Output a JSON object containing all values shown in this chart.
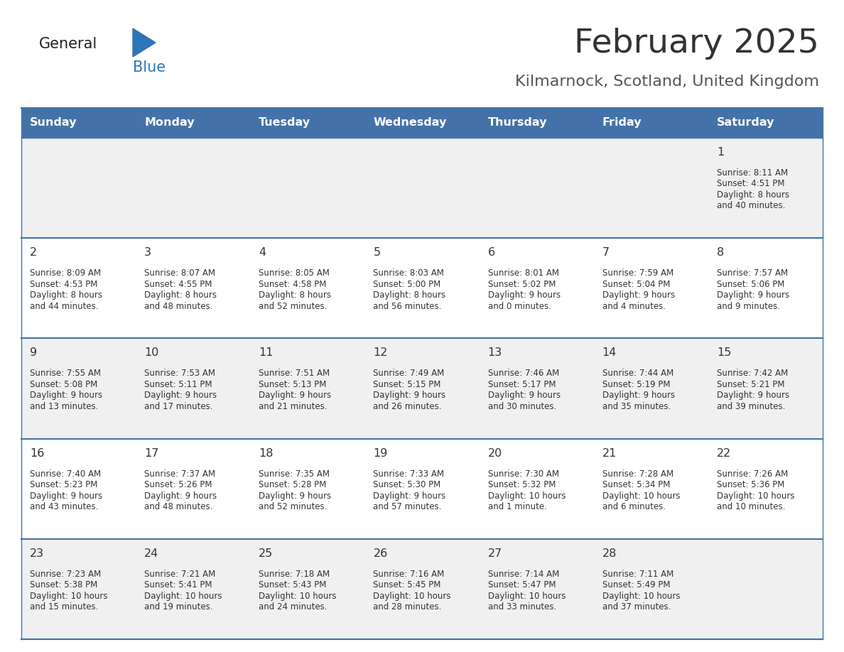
{
  "title": "February 2025",
  "subtitle": "Kilmarnock, Scotland, United Kingdom",
  "days_of_week": [
    "Sunday",
    "Monday",
    "Tuesday",
    "Wednesday",
    "Thursday",
    "Friday",
    "Saturday"
  ],
  "header_bg": "#4472a8",
  "header_text": "#ffffff",
  "row_bg_odd": "#f0f0f0",
  "row_bg_even": "#ffffff",
  "row_divider": "#4472a8",
  "cell_text": "#333333",
  "title_color": "#333333",
  "subtitle_color": "#555555",
  "logo_general_color": "#222222",
  "logo_blue_color": "#2e75b6",
  "fig_width": 11.88,
  "fig_height": 9.18,
  "calendar_data": [
    {
      "day": 1,
      "col": 6,
      "row": 0,
      "sunrise": "8:11 AM",
      "sunset": "4:51 PM",
      "daylight_line1": "Daylight: 8 hours",
      "daylight_line2": "and 40 minutes."
    },
    {
      "day": 2,
      "col": 0,
      "row": 1,
      "sunrise": "8:09 AM",
      "sunset": "4:53 PM",
      "daylight_line1": "Daylight: 8 hours",
      "daylight_line2": "and 44 minutes."
    },
    {
      "day": 3,
      "col": 1,
      "row": 1,
      "sunrise": "8:07 AM",
      "sunset": "4:55 PM",
      "daylight_line1": "Daylight: 8 hours",
      "daylight_line2": "and 48 minutes."
    },
    {
      "day": 4,
      "col": 2,
      "row": 1,
      "sunrise": "8:05 AM",
      "sunset": "4:58 PM",
      "daylight_line1": "Daylight: 8 hours",
      "daylight_line2": "and 52 minutes."
    },
    {
      "day": 5,
      "col": 3,
      "row": 1,
      "sunrise": "8:03 AM",
      "sunset": "5:00 PM",
      "daylight_line1": "Daylight: 8 hours",
      "daylight_line2": "and 56 minutes."
    },
    {
      "day": 6,
      "col": 4,
      "row": 1,
      "sunrise": "8:01 AM",
      "sunset": "5:02 PM",
      "daylight_line1": "Daylight: 9 hours",
      "daylight_line2": "and 0 minutes."
    },
    {
      "day": 7,
      "col": 5,
      "row": 1,
      "sunrise": "7:59 AM",
      "sunset": "5:04 PM",
      "daylight_line1": "Daylight: 9 hours",
      "daylight_line2": "and 4 minutes."
    },
    {
      "day": 8,
      "col": 6,
      "row": 1,
      "sunrise": "7:57 AM",
      "sunset": "5:06 PM",
      "daylight_line1": "Daylight: 9 hours",
      "daylight_line2": "and 9 minutes."
    },
    {
      "day": 9,
      "col": 0,
      "row": 2,
      "sunrise": "7:55 AM",
      "sunset": "5:08 PM",
      "daylight_line1": "Daylight: 9 hours",
      "daylight_line2": "and 13 minutes."
    },
    {
      "day": 10,
      "col": 1,
      "row": 2,
      "sunrise": "7:53 AM",
      "sunset": "5:11 PM",
      "daylight_line1": "Daylight: 9 hours",
      "daylight_line2": "and 17 minutes."
    },
    {
      "day": 11,
      "col": 2,
      "row": 2,
      "sunrise": "7:51 AM",
      "sunset": "5:13 PM",
      "daylight_line1": "Daylight: 9 hours",
      "daylight_line2": "and 21 minutes."
    },
    {
      "day": 12,
      "col": 3,
      "row": 2,
      "sunrise": "7:49 AM",
      "sunset": "5:15 PM",
      "daylight_line1": "Daylight: 9 hours",
      "daylight_line2": "and 26 minutes."
    },
    {
      "day": 13,
      "col": 4,
      "row": 2,
      "sunrise": "7:46 AM",
      "sunset": "5:17 PM",
      "daylight_line1": "Daylight: 9 hours",
      "daylight_line2": "and 30 minutes."
    },
    {
      "day": 14,
      "col": 5,
      "row": 2,
      "sunrise": "7:44 AM",
      "sunset": "5:19 PM",
      "daylight_line1": "Daylight: 9 hours",
      "daylight_line2": "and 35 minutes."
    },
    {
      "day": 15,
      "col": 6,
      "row": 2,
      "sunrise": "7:42 AM",
      "sunset": "5:21 PM",
      "daylight_line1": "Daylight: 9 hours",
      "daylight_line2": "and 39 minutes."
    },
    {
      "day": 16,
      "col": 0,
      "row": 3,
      "sunrise": "7:40 AM",
      "sunset": "5:23 PM",
      "daylight_line1": "Daylight: 9 hours",
      "daylight_line2": "and 43 minutes."
    },
    {
      "day": 17,
      "col": 1,
      "row": 3,
      "sunrise": "7:37 AM",
      "sunset": "5:26 PM",
      "daylight_line1": "Daylight: 9 hours",
      "daylight_line2": "and 48 minutes."
    },
    {
      "day": 18,
      "col": 2,
      "row": 3,
      "sunrise": "7:35 AM",
      "sunset": "5:28 PM",
      "daylight_line1": "Daylight: 9 hours",
      "daylight_line2": "and 52 minutes."
    },
    {
      "day": 19,
      "col": 3,
      "row": 3,
      "sunrise": "7:33 AM",
      "sunset": "5:30 PM",
      "daylight_line1": "Daylight: 9 hours",
      "daylight_line2": "and 57 minutes."
    },
    {
      "day": 20,
      "col": 4,
      "row": 3,
      "sunrise": "7:30 AM",
      "sunset": "5:32 PM",
      "daylight_line1": "Daylight: 10 hours",
      "daylight_line2": "and 1 minute."
    },
    {
      "day": 21,
      "col": 5,
      "row": 3,
      "sunrise": "7:28 AM",
      "sunset": "5:34 PM",
      "daylight_line1": "Daylight: 10 hours",
      "daylight_line2": "and 6 minutes."
    },
    {
      "day": 22,
      "col": 6,
      "row": 3,
      "sunrise": "7:26 AM",
      "sunset": "5:36 PM",
      "daylight_line1": "Daylight: 10 hours",
      "daylight_line2": "and 10 minutes."
    },
    {
      "day": 23,
      "col": 0,
      "row": 4,
      "sunrise": "7:23 AM",
      "sunset": "5:38 PM",
      "daylight_line1": "Daylight: 10 hours",
      "daylight_line2": "and 15 minutes."
    },
    {
      "day": 24,
      "col": 1,
      "row": 4,
      "sunrise": "7:21 AM",
      "sunset": "5:41 PM",
      "daylight_line1": "Daylight: 10 hours",
      "daylight_line2": "and 19 minutes."
    },
    {
      "day": 25,
      "col": 2,
      "row": 4,
      "sunrise": "7:18 AM",
      "sunset": "5:43 PM",
      "daylight_line1": "Daylight: 10 hours",
      "daylight_line2": "and 24 minutes."
    },
    {
      "day": 26,
      "col": 3,
      "row": 4,
      "sunrise": "7:16 AM",
      "sunset": "5:45 PM",
      "daylight_line1": "Daylight: 10 hours",
      "daylight_line2": "and 28 minutes."
    },
    {
      "day": 27,
      "col": 4,
      "row": 4,
      "sunrise": "7:14 AM",
      "sunset": "5:47 PM",
      "daylight_line1": "Daylight: 10 hours",
      "daylight_line2": "and 33 minutes."
    },
    {
      "day": 28,
      "col": 5,
      "row": 4,
      "sunrise": "7:11 AM",
      "sunset": "5:49 PM",
      "daylight_line1": "Daylight: 10 hours",
      "daylight_line2": "and 37 minutes."
    }
  ]
}
